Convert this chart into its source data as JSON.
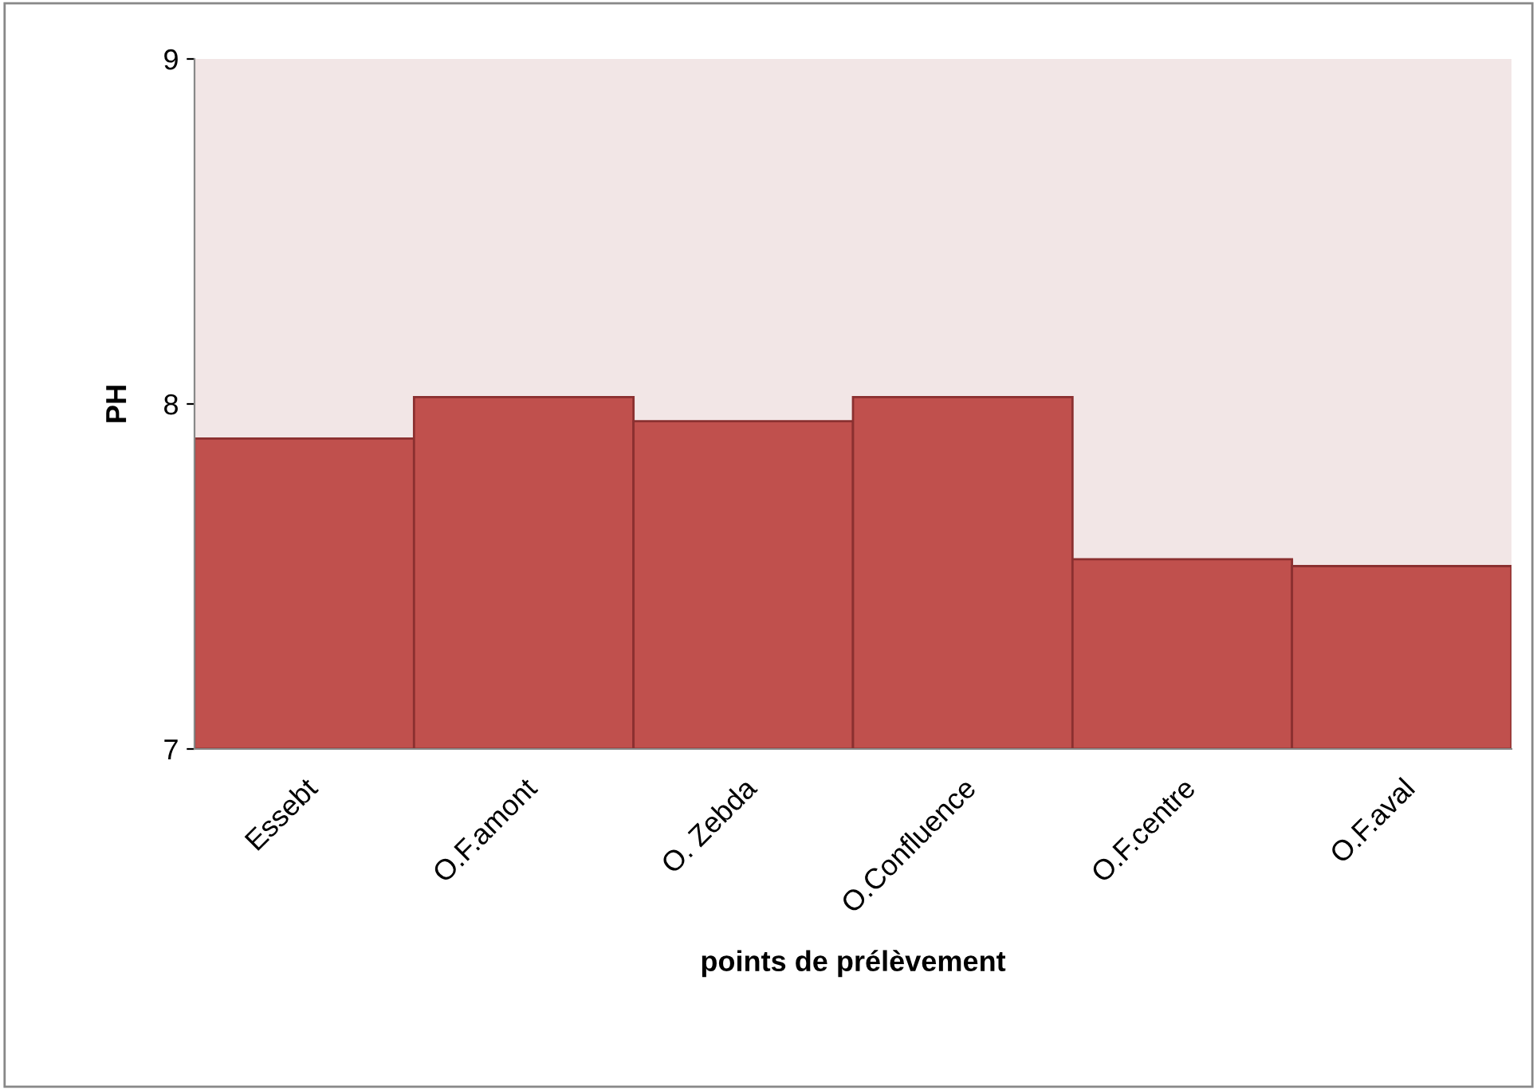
{
  "chart_data": {
    "type": "bar",
    "xlabel": "points de prélèvement",
    "ylabel": "PH",
    "categories": [
      "Essebt",
      "O.F.amont",
      "O. Zebda",
      "O.Confluence",
      "O.F.centre",
      "O.F.aval"
    ],
    "values": [
      7.9,
      8.02,
      7.95,
      8.02,
      7.55,
      7.53
    ],
    "color": "#c0504d",
    "ylim": [
      7,
      9
    ],
    "yticks": [
      7,
      8,
      9
    ],
    "grid": false,
    "legend": false
  }
}
